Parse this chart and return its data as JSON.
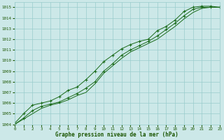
{
  "x": [
    0,
    1,
    2,
    3,
    4,
    5,
    6,
    7,
    8,
    9,
    10,
    11,
    12,
    13,
    14,
    15,
    16,
    17,
    18,
    19,
    20,
    21,
    22,
    23
  ],
  "line1": [
    1004.1,
    1005.0,
    1005.8,
    1006.0,
    1006.2,
    1006.6,
    1007.2,
    1007.5,
    1008.2,
    1009.0,
    1009.9,
    1010.5,
    1011.1,
    1011.5,
    1011.8,
    1012.0,
    1012.8,
    1013.2,
    1013.8,
    1014.6,
    1015.0,
    1015.1,
    1015.1,
    1015.0
  ],
  "line2": [
    1004.0,
    1004.6,
    1005.3,
    1005.7,
    1005.9,
    1006.1,
    1006.5,
    1006.9,
    1007.4,
    1008.0,
    1009.0,
    1009.7,
    1010.5,
    1011.0,
    1011.4,
    1011.8,
    1012.3,
    1012.9,
    1013.5,
    1014.2,
    1014.8,
    1015.0,
    1015.0,
    1015.0
  ],
  "line3": [
    1004.0,
    1004.5,
    1005.0,
    1005.5,
    1005.8,
    1006.0,
    1006.3,
    1006.7,
    1007.0,
    1007.8,
    1008.8,
    1009.5,
    1010.2,
    1010.8,
    1011.2,
    1011.6,
    1012.0,
    1012.6,
    1013.2,
    1013.9,
    1014.5,
    1014.9,
    1015.0,
    1015.0
  ],
  "bg_color": "#cce8e8",
  "grid_color": "#99cccc",
  "line_color": "#1a6b1a",
  "marker_color": "#1a6b1a",
  "axis_label_color": "#1a5500",
  "tick_color": "#1a5500",
  "ylabel_min": 1004,
  "ylabel_max": 1015,
  "xlabel_label": "Graphe pression niveau de la mer (hPa)",
  "xlim": [
    0,
    23
  ],
  "ylim": [
    1004.0,
    1015.5
  ]
}
